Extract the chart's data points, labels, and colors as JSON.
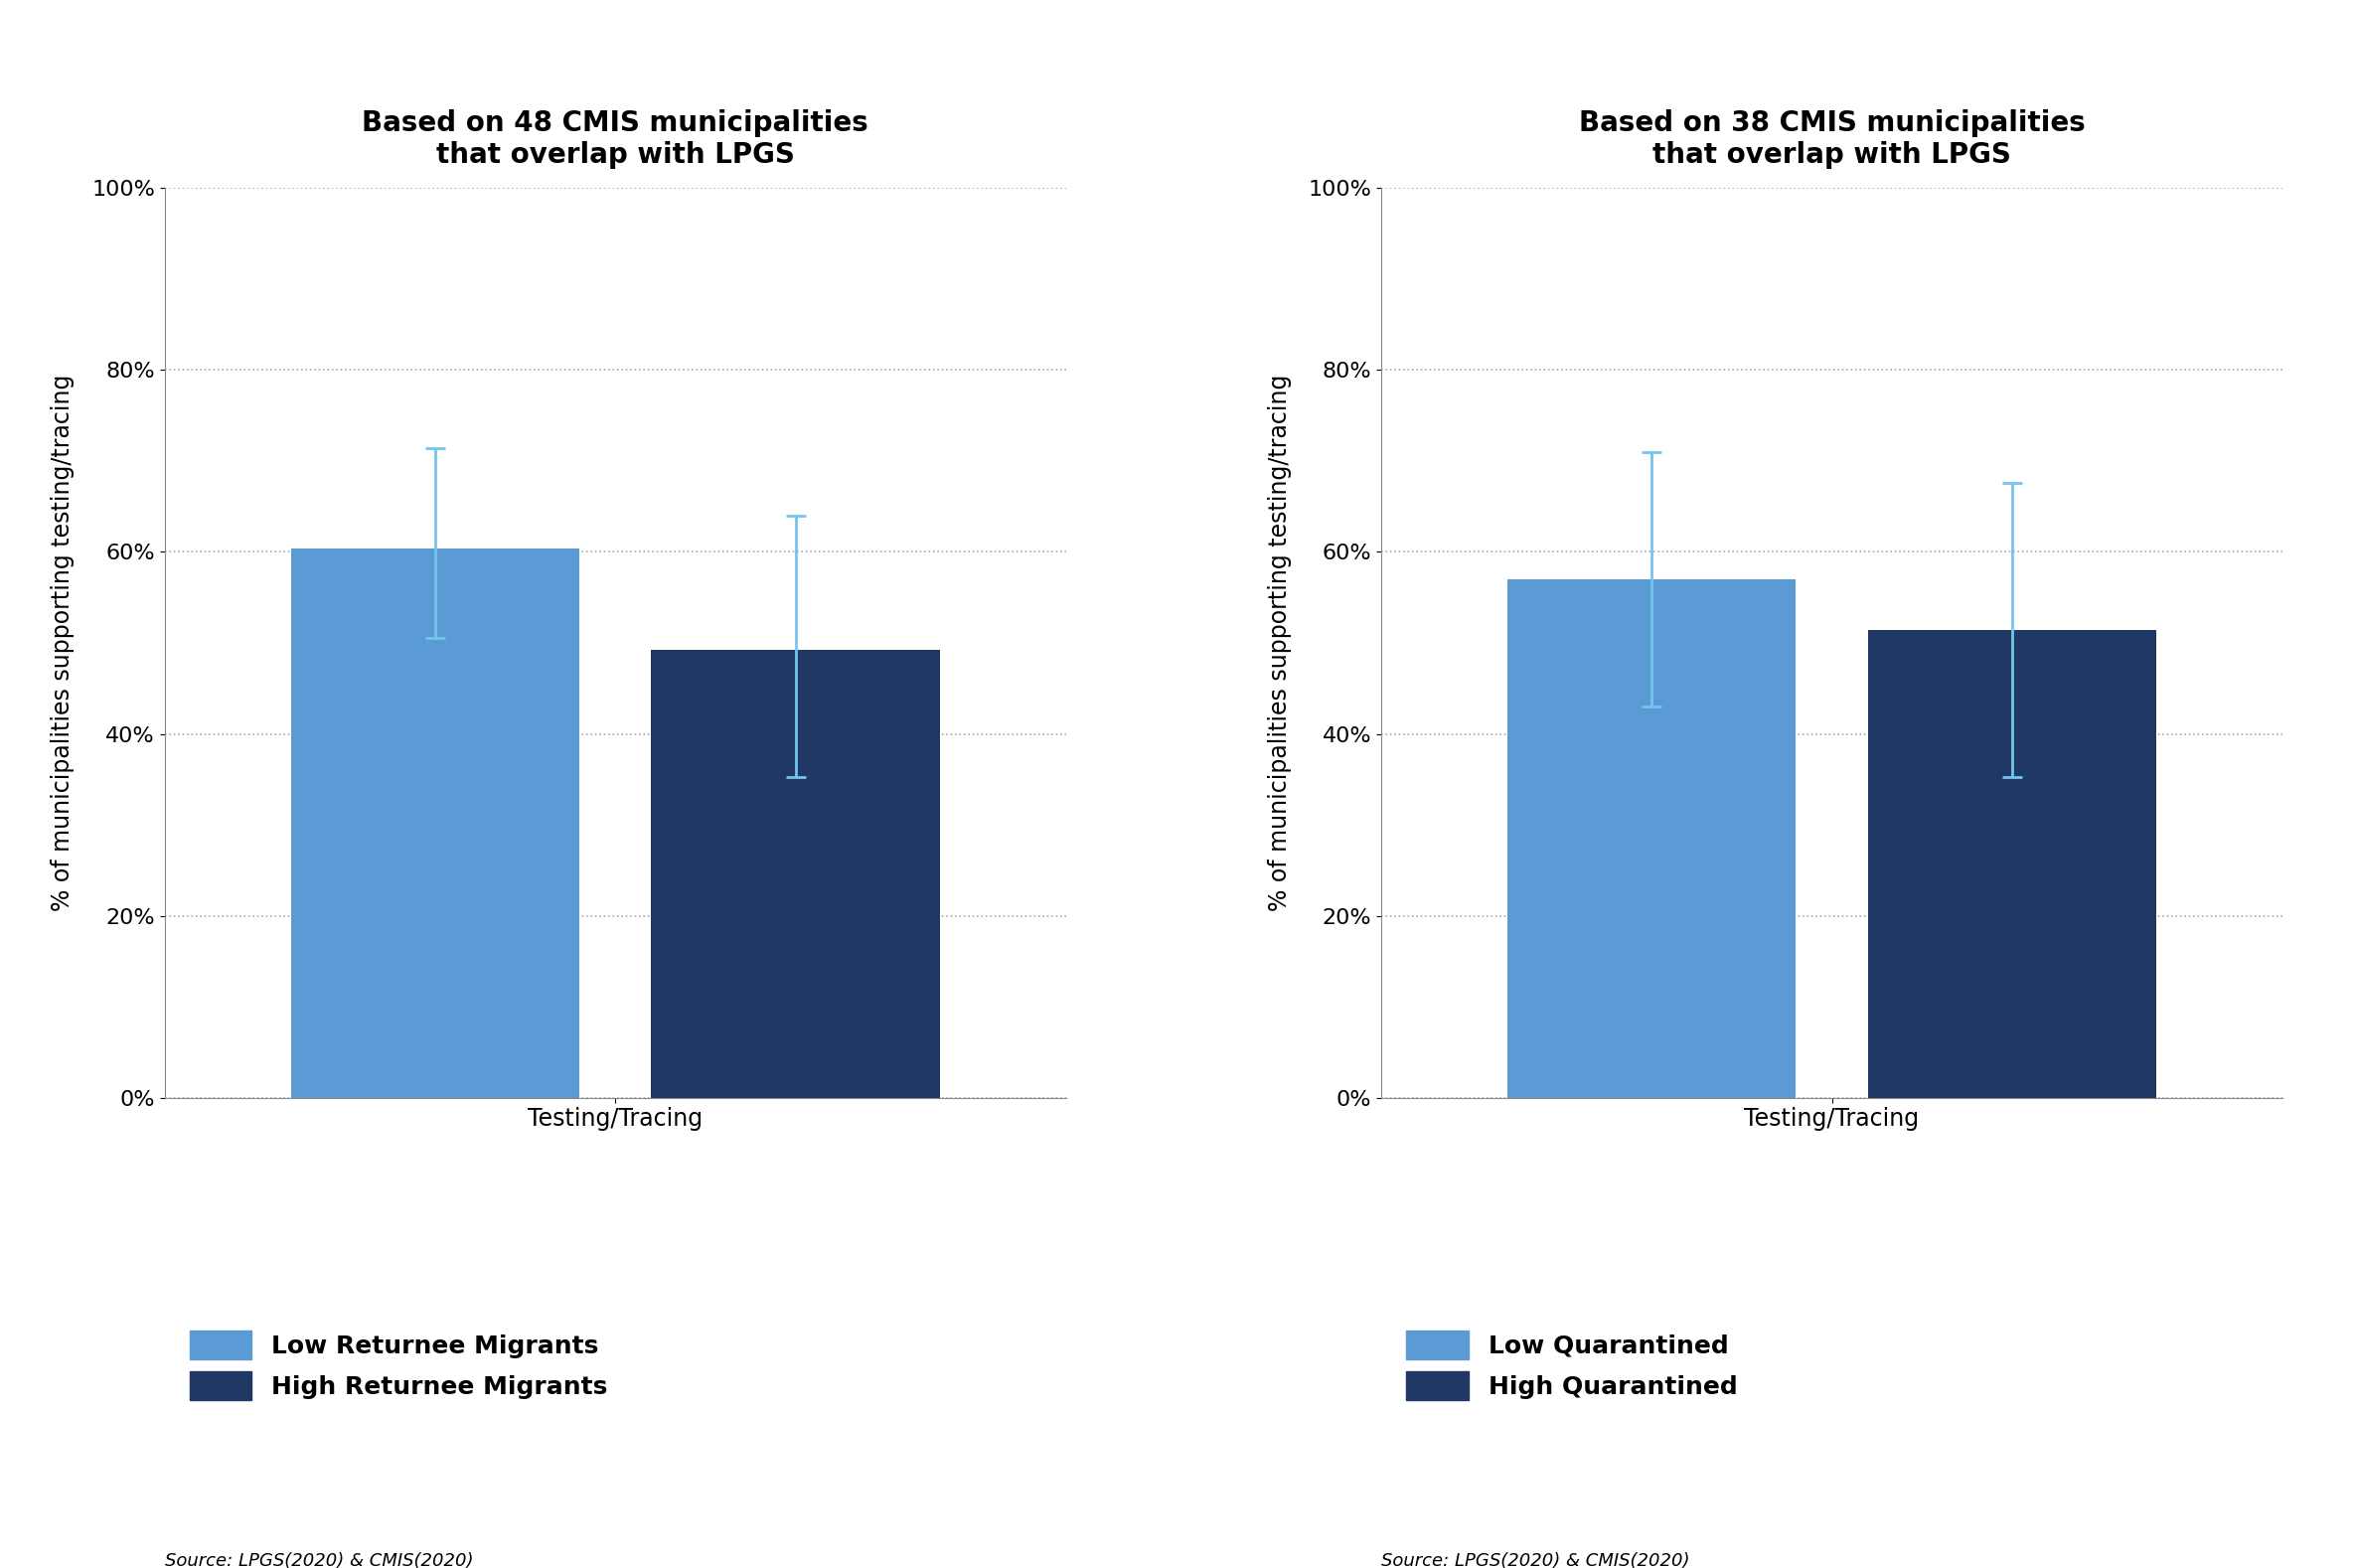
{
  "chart1": {
    "title": "Based on 48 CMIS municipalities\nthat overlap with LPGS",
    "bars": [
      {
        "label": "Low Returnee Migrants",
        "value": 0.604,
        "color": "#5B9BD5",
        "err_low": 0.099,
        "err_high": 0.11
      },
      {
        "label": "High Returnee Migrants",
        "value": 0.492,
        "color": "#1F3864",
        "err_low": 0.14,
        "err_high": 0.148
      }
    ],
    "legend": [
      {
        "label": "Low Returnee Migrants",
        "color": "#5B9BD5"
      },
      {
        "label": "High Returnee Migrants",
        "color": "#1F3864"
      }
    ],
    "source": "Source: LPGS(2020) & CMIS(2020)"
  },
  "chart2": {
    "title": "Based on 38 CMIS municipalities\nthat overlap with LPGS",
    "bars": [
      {
        "label": "Low Quarantined",
        "value": 0.57,
        "color": "#5B9BD5",
        "err_low": 0.14,
        "err_high": 0.14
      },
      {
        "label": "High Quarantined",
        "value": 0.514,
        "color": "#1F3864",
        "err_low": 0.162,
        "err_high": 0.162
      }
    ],
    "legend": [
      {
        "label": "Low Quarantined",
        "color": "#5B9BD5"
      },
      {
        "label": "High Quarantined",
        "color": "#1F3864"
      }
    ],
    "source": "Source: LPGS(2020) & CMIS(2020)"
  },
  "ylabel": "% of municipalities supporting testing/tracing",
  "xlabel": "Testing/Tracing",
  "ylim": [
    0,
    1.0
  ],
  "yticks": [
    0.0,
    0.2,
    0.4,
    0.6,
    0.8,
    1.0
  ],
  "yticklabels": [
    "0%",
    "20%",
    "40%",
    "60%",
    "80%",
    "100%"
  ],
  "title_fontsize": 20,
  "label_fontsize": 17,
  "tick_fontsize": 16,
  "legend_fontsize": 18,
  "source_fontsize": 13,
  "error_color": "#74C4ED",
  "background_color": "#FFFFFF"
}
